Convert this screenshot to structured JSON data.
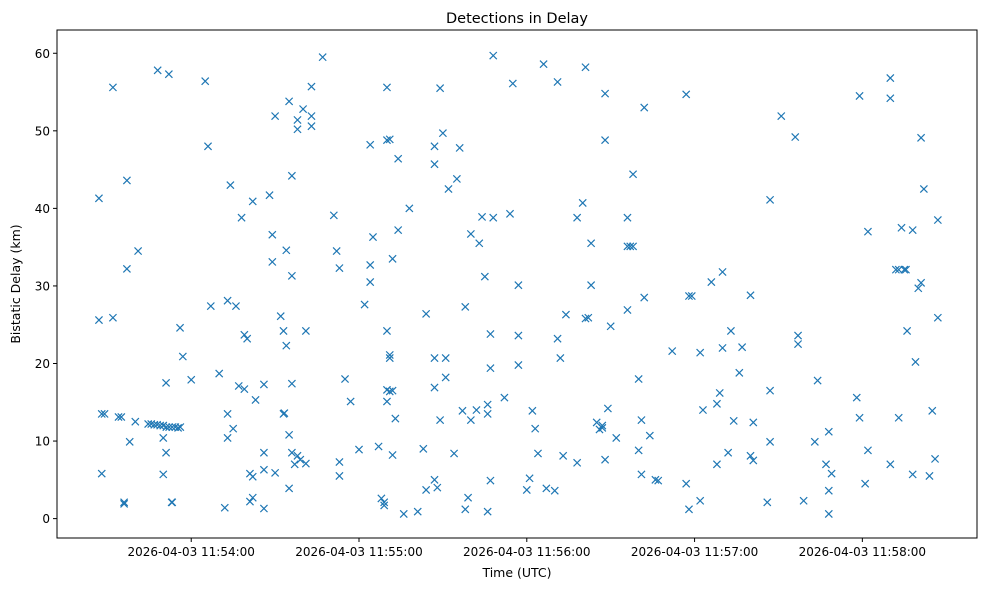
{
  "chart_data": {
    "type": "scatter",
    "title": "Detections in Delay",
    "xlabel": "Time (UTC)",
    "ylabel": "Bistatic Delay (km)",
    "x_units": "seconds after 2026-04-03 11:54:00",
    "xlim": [
      -48,
      281
    ],
    "ylim": [
      -2.5,
      63
    ],
    "grid": false,
    "legend": "none",
    "marker": "x",
    "color": "#1f77b4",
    "x_ticks": [
      {
        "value": 0,
        "label": "2026-04-03 11:54:00"
      },
      {
        "value": 60,
        "label": "2026-04-03 11:55:00"
      },
      {
        "value": 120,
        "label": "2026-04-03 11:56:00"
      },
      {
        "value": 180,
        "label": "2026-04-03 11:57:00"
      },
      {
        "value": 240,
        "label": "2026-04-03 11:58:00"
      }
    ],
    "y_ticks": [
      {
        "value": 0,
        "label": "0"
      },
      {
        "value": 10,
        "label": "10"
      },
      {
        "value": 20,
        "label": "20"
      },
      {
        "value": 30,
        "label": "30"
      },
      {
        "value": 40,
        "label": "40"
      },
      {
        "value": 50,
        "label": "50"
      },
      {
        "value": 60,
        "label": "60"
      }
    ],
    "points": [
      [
        -33,
        41.3
      ],
      [
        -33,
        25.6
      ],
      [
        -32,
        13.5
      ],
      [
        -31,
        13.5
      ],
      [
        -32,
        5.8
      ],
      [
        -28,
        55.6
      ],
      [
        -28,
        25.9
      ],
      [
        -26,
        13.1
      ],
      [
        -25,
        13.1
      ],
      [
        -24,
        2.1
      ],
      [
        -24,
        1.9
      ],
      [
        -23,
        43.6
      ],
      [
        -23,
        32.2
      ],
      [
        -22,
        9.9
      ],
      [
        -19,
        34.5
      ],
      [
        -20,
        12.5
      ],
      [
        -15.4,
        12.2
      ],
      [
        -14.3,
        12.2
      ],
      [
        -13.2,
        12.1
      ],
      [
        -12.2,
        12.1
      ],
      [
        -11.1,
        12.0
      ],
      [
        -10.0,
        12.0
      ],
      [
        -8.9,
        11.8
      ],
      [
        -7.9,
        11.8
      ],
      [
        -6.8,
        11.8
      ],
      [
        -5.7,
        11.8
      ],
      [
        -4.7,
        11.7
      ],
      [
        -3.9,
        11.8
      ],
      [
        -12,
        57.8
      ],
      [
        -8,
        57.3
      ],
      [
        -10,
        10.4
      ],
      [
        -9,
        17.5
      ],
      [
        -9,
        8.5
      ],
      [
        -10,
        5.7
      ],
      [
        -7,
        2.1
      ],
      [
        -6.8,
        2.1
      ],
      [
        -4,
        24.6
      ],
      [
        -3,
        20.9
      ],
      [
        0,
        17.9
      ],
      [
        5,
        56.4
      ],
      [
        6,
        48.0
      ],
      [
        7,
        27.4
      ],
      [
        10,
        18.7
      ],
      [
        12,
        1.4
      ],
      [
        13,
        28.1
      ],
      [
        13,
        10.4
      ],
      [
        13,
        13.5
      ],
      [
        14,
        43.0
      ],
      [
        15,
        11.6
      ],
      [
        16,
        27.4
      ],
      [
        17,
        17.1
      ],
      [
        18,
        38.8
      ],
      [
        19,
        16.7
      ],
      [
        19,
        23.7
      ],
      [
        20,
        23.2
      ],
      [
        21,
        5.8
      ],
      [
        21,
        2.2
      ],
      [
        22,
        5.4
      ],
      [
        22,
        40.9
      ],
      [
        23,
        15.3
      ],
      [
        22,
        2.7
      ],
      [
        26,
        1.3
      ],
      [
        26,
        8.5
      ],
      [
        26,
        17.3
      ],
      [
        26,
        6.3
      ],
      [
        28,
        41.7
      ],
      [
        29,
        36.6
      ],
      [
        29,
        33.1
      ],
      [
        30,
        51.9
      ],
      [
        30,
        5.9
      ],
      [
        32,
        26.1
      ],
      [
        33,
        13.5
      ],
      [
        33.3,
        13.6
      ],
      [
        33,
        24.2
      ],
      [
        34,
        34.6
      ],
      [
        34,
        22.3
      ],
      [
        35,
        53.8
      ],
      [
        35,
        10.8
      ],
      [
        35,
        3.9
      ],
      [
        36,
        44.2
      ],
      [
        36,
        31.3
      ],
      [
        36,
        17.4
      ],
      [
        36,
        8.5
      ],
      [
        37,
        7.0
      ],
      [
        38,
        51.4
      ],
      [
        38,
        50.2
      ],
      [
        38,
        8.1
      ],
      [
        39,
        7.6
      ],
      [
        40,
        52.8
      ],
      [
        41,
        7.1
      ],
      [
        41,
        24.2
      ],
      [
        43,
        55.7
      ],
      [
        43,
        51.9
      ],
      [
        43,
        50.6
      ],
      [
        47,
        59.5
      ],
      [
        51,
        39.1
      ],
      [
        52,
        34.5
      ],
      [
        53,
        32.3
      ],
      [
        53,
        7.3
      ],
      [
        53,
        5.5
      ],
      [
        55,
        18.0
      ],
      [
        57,
        15.1
      ],
      [
        60,
        8.9
      ],
      [
        62,
        27.6
      ],
      [
        64,
        48.2
      ],
      [
        64,
        32.7
      ],
      [
        64,
        30.5
      ],
      [
        65,
        36.3
      ],
      [
        67,
        9.3
      ],
      [
        68,
        2.6
      ],
      [
        69,
        2.1
      ],
      [
        69,
        1.7
      ],
      [
        70,
        24.2
      ],
      [
        70,
        16.6
      ],
      [
        71,
        48.9
      ],
      [
        70,
        55.6
      ],
      [
        70,
        48.8
      ],
      [
        70,
        15.1
      ],
      [
        71,
        16.4
      ],
      [
        71,
        21.1
      ],
      [
        71,
        20.7
      ],
      [
        72,
        33.5
      ],
      [
        72,
        8.2
      ],
      [
        72,
        16.5
      ],
      [
        73,
        12.9
      ],
      [
        74,
        46.4
      ],
      [
        74,
        37.2
      ],
      [
        76,
        0.6
      ],
      [
        78,
        40.0
      ],
      [
        81,
        0.9
      ],
      [
        83,
        9.0
      ],
      [
        84,
        3.7
      ],
      [
        84,
        26.4
      ],
      [
        87,
        5.0
      ],
      [
        87,
        16.9
      ],
      [
        87,
        20.7
      ],
      [
        88,
        4.0
      ],
      [
        87,
        45.7
      ],
      [
        87,
        48.0
      ],
      [
        90,
        49.7
      ],
      [
        89,
        12.7
      ],
      [
        89,
        55.5
      ],
      [
        91,
        18.2
      ],
      [
        91,
        20.7
      ],
      [
        92,
        42.5
      ],
      [
        94,
        8.4
      ],
      [
        95,
        43.8
      ],
      [
        96,
        47.8
      ],
      [
        97,
        13.9
      ],
      [
        98,
        27.3
      ],
      [
        98,
        1.2
      ],
      [
        99,
        2.7
      ],
      [
        100,
        12.7
      ],
      [
        100,
        36.7
      ],
      [
        102,
        14.0
      ],
      [
        103,
        35.5
      ],
      [
        104,
        38.9
      ],
      [
        105,
        31.2
      ],
      [
        106,
        14.7
      ],
      [
        106,
        13.5
      ],
      [
        106,
        0.9
      ],
      [
        107,
        4.9
      ],
      [
        107,
        23.8
      ],
      [
        107,
        19.4
      ],
      [
        108,
        59.7
      ],
      [
        108,
        38.8
      ],
      [
        112,
        15.6
      ],
      [
        115,
        56.1
      ],
      [
        114,
        39.3
      ],
      [
        117,
        23.6
      ],
      [
        117,
        19.8
      ],
      [
        117,
        30.1
      ],
      [
        120,
        3.7
      ],
      [
        121,
        5.2
      ],
      [
        122,
        13.9
      ],
      [
        123,
        11.6
      ],
      [
        124,
        8.4
      ],
      [
        126,
        58.6
      ],
      [
        127,
        3.9
      ],
      [
        130,
        3.6
      ],
      [
        131,
        23.2
      ],
      [
        131,
        56.3
      ],
      [
        132,
        20.7
      ],
      [
        133,
        8.1
      ],
      [
        134,
        26.3
      ],
      [
        138,
        7.2
      ],
      [
        138,
        38.8
      ],
      [
        140,
        40.7
      ],
      [
        141,
        58.2
      ],
      [
        141,
        25.8
      ],
      [
        142,
        25.9
      ],
      [
        143,
        35.5
      ],
      [
        143,
        30.1
      ],
      [
        145,
        12.4
      ],
      [
        146,
        11.5
      ],
      [
        147,
        11.7
      ],
      [
        147,
        12.0
      ],
      [
        148,
        7.6
      ],
      [
        148,
        54.8
      ],
      [
        148,
        48.8
      ],
      [
        149,
        14.2
      ],
      [
        150,
        24.8
      ],
      [
        152,
        10.4
      ],
      [
        156,
        38.8
      ],
      [
        156,
        26.9
      ],
      [
        156,
        35.1
      ],
      [
        157,
        35.1
      ],
      [
        158,
        35.1
      ],
      [
        158,
        44.4
      ],
      [
        160,
        18.0
      ],
      [
        160,
        8.8
      ],
      [
        161,
        5.7
      ],
      [
        161,
        12.7
      ],
      [
        162,
        53.0
      ],
      [
        162,
        28.5
      ],
      [
        164,
        10.7
      ],
      [
        166,
        5.0
      ],
      [
        167,
        4.9
      ],
      [
        172,
        21.6
      ],
      [
        177,
        54.7
      ],
      [
        177,
        4.5
      ],
      [
        178,
        28.7
      ],
      [
        179,
        28.7
      ],
      [
        178,
        1.2
      ],
      [
        182,
        21.4
      ],
      [
        182,
        2.3
      ],
      [
        183,
        14.0
      ],
      [
        186,
        30.5
      ],
      [
        188,
        14.8
      ],
      [
        188,
        7.0
      ],
      [
        189,
        16.2
      ],
      [
        190,
        31.8
      ],
      [
        190,
        22.0
      ],
      [
        192,
        8.5
      ],
      [
        193,
        24.2
      ],
      [
        194,
        12.6
      ],
      [
        196,
        18.8
      ],
      [
        197,
        22.1
      ],
      [
        200,
        28.8
      ],
      [
        200,
        8.1
      ],
      [
        201,
        12.4
      ],
      [
        201,
        7.5
      ],
      [
        206,
        2.1
      ],
      [
        207,
        41.1
      ],
      [
        207,
        16.5
      ],
      [
        207,
        9.9
      ],
      [
        211,
        51.9
      ],
      [
        216,
        49.2
      ],
      [
        217,
        23.6
      ],
      [
        217,
        22.5
      ],
      [
        219,
        2.3
      ],
      [
        223,
        9.9
      ],
      [
        224,
        17.8
      ],
      [
        227,
        7.0
      ],
      [
        228,
        11.2
      ],
      [
        228,
        3.6
      ],
      [
        228,
        0.6
      ],
      [
        229,
        5.8
      ],
      [
        239,
        54.5
      ],
      [
        238,
        15.6
      ],
      [
        239,
        13.0
      ],
      [
        241,
        4.5
      ],
      [
        242,
        8.8
      ],
      [
        242,
        37.0
      ],
      [
        250,
        56.8
      ],
      [
        250,
        54.2
      ],
      [
        250,
        7.0
      ],
      [
        252,
        32.1
      ],
      [
        253,
        13.0
      ],
      [
        253,
        32.1
      ],
      [
        254,
        37.5
      ],
      [
        255,
        32.1
      ],
      [
        255.6,
        32.1
      ],
      [
        256,
        24.2
      ],
      [
        258,
        5.7
      ],
      [
        258,
        37.2
      ],
      [
        259,
        20.2
      ],
      [
        260,
        29.7
      ],
      [
        261,
        30.4
      ],
      [
        261,
        49.1
      ],
      [
        262,
        42.5
      ],
      [
        264,
        5.5
      ],
      [
        265,
        13.9
      ],
      [
        266,
        7.7
      ],
      [
        267,
        38.5
      ],
      [
        267,
        25.9
      ]
    ]
  }
}
